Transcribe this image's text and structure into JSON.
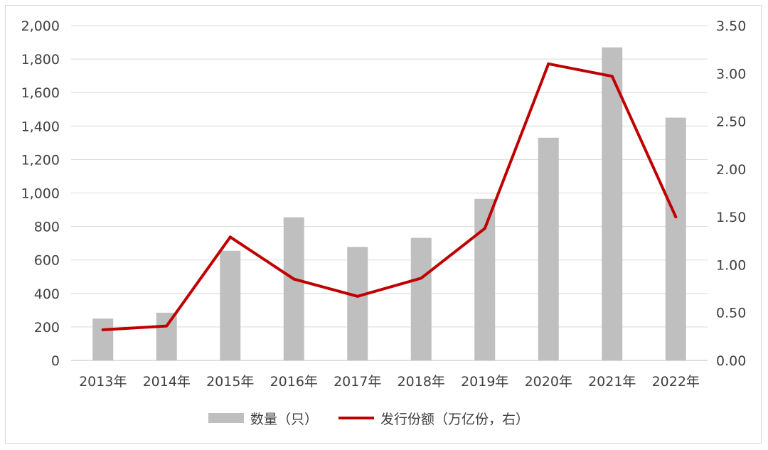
{
  "chart_data": {
    "type": "bar+line",
    "categories": [
      "2013年",
      "2014年",
      "2015年",
      "2016年",
      "2017年",
      "2018年",
      "2019年",
      "2020年",
      "2021年",
      "2022年"
    ],
    "series": [
      {
        "name": "数量（只）",
        "type": "bar",
        "axis": "left",
        "color": "#bfbfbf",
        "values": [
          250,
          285,
          655,
          855,
          678,
          732,
          965,
          1330,
          1870,
          1450
        ]
      },
      {
        "name": "发行份额（万亿份，右）",
        "type": "line",
        "axis": "right",
        "color": "#c00000",
        "values": [
          0.32,
          0.36,
          1.29,
          0.85,
          0.67,
          0.86,
          1.38,
          3.1,
          2.97,
          1.5
        ]
      }
    ],
    "yleft": {
      "min": 0,
      "max": 2000,
      "step": 200,
      "ticks": [
        "0",
        "200",
        "400",
        "600",
        "800",
        "1,000",
        "1,200",
        "1,400",
        "1,600",
        "1,800",
        "2,000"
      ]
    },
    "yright": {
      "min": 0,
      "max": 3.5,
      "step": 0.5,
      "ticks": [
        "0.00",
        "0.50",
        "1.00",
        "1.50",
        "2.00",
        "2.50",
        "3.00",
        "3.50"
      ]
    },
    "grid": true,
    "legend": "bottom"
  }
}
